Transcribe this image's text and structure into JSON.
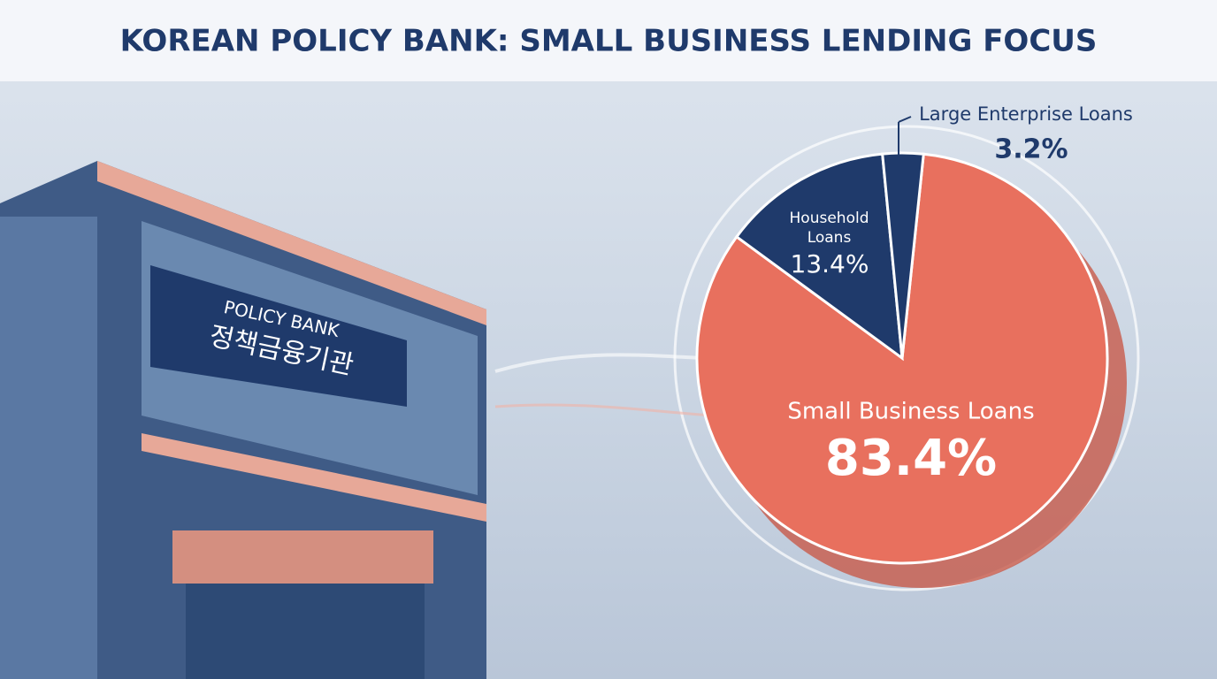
{
  "chart_data": {
    "type": "pie",
    "title": "KOREAN POLICY BANK: SMALL BUSINESS LENDING FOCUS",
    "categories": [
      "Small Business Loans",
      "Household Loans",
      "Large Enterprise Loans"
    ],
    "values": [
      83.4,
      13.4,
      3.2
    ],
    "value_labels": [
      "83.4%",
      "13.4%",
      "3.2%"
    ],
    "colors": [
      "#e8705e",
      "#1f3a6b",
      "#1f3a6b"
    ],
    "annotations": [
      "POLICY BANK",
      "정책금융기관"
    ]
  }
}
